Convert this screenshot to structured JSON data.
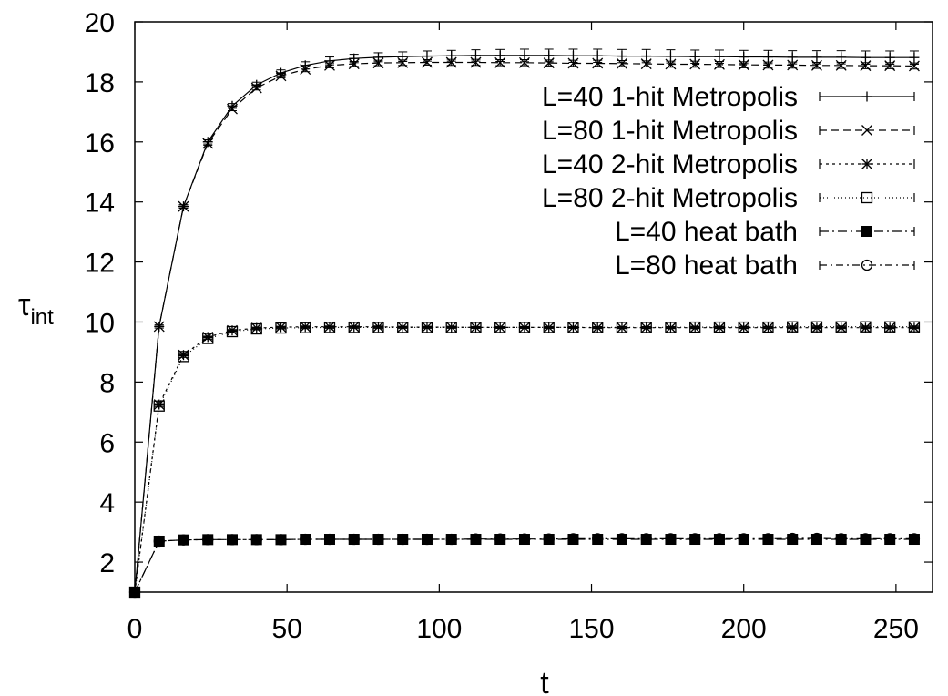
{
  "chart_data": {
    "type": "line",
    "xlabel": "t",
    "ylabel_main": "τ",
    "ylabel_sub": "int",
    "xlim": [
      0,
      262
    ],
    "ylim": [
      1,
      20
    ],
    "xticks": [
      0,
      50,
      100,
      150,
      200,
      250
    ],
    "yticks": [
      2,
      4,
      6,
      8,
      10,
      12,
      14,
      16,
      18,
      20
    ],
    "grid": false,
    "legend_position": "top-right",
    "series": [
      {
        "name": "L=40 1-hit Metropolis",
        "marker": "plus",
        "dash": "solid",
        "errorbars": true,
        "x": [
          0,
          8,
          16,
          24,
          32,
          40,
          48,
          56,
          64,
          72,
          80,
          88,
          96,
          104,
          112,
          120,
          128,
          136,
          144,
          152,
          160,
          168,
          176,
          184,
          192,
          200,
          208,
          216,
          224,
          232,
          240,
          248,
          256
        ],
        "y": [
          1.0,
          9.85,
          13.85,
          16.0,
          17.2,
          17.9,
          18.3,
          18.55,
          18.7,
          18.78,
          18.82,
          18.84,
          18.86,
          18.87,
          18.88,
          18.88,
          18.88,
          18.88,
          18.87,
          18.87,
          18.86,
          18.86,
          18.85,
          18.84,
          18.84,
          18.83,
          18.83,
          18.82,
          18.82,
          18.82,
          18.81,
          18.81,
          18.81
        ],
        "err": [
          0.0,
          0.05,
          0.06,
          0.07,
          0.08,
          0.09,
          0.1,
          0.12,
          0.13,
          0.14,
          0.15,
          0.16,
          0.17,
          0.18,
          0.19,
          0.2,
          0.21,
          0.21,
          0.22,
          0.22,
          0.22,
          0.22,
          0.22,
          0.22,
          0.22,
          0.22,
          0.22,
          0.22,
          0.22,
          0.22,
          0.22,
          0.22,
          0.22
        ]
      },
      {
        "name": "L=80 1-hit Metropolis",
        "marker": "cross",
        "dash": "8,5",
        "errorbars": true,
        "x": [
          0,
          8,
          16,
          24,
          32,
          40,
          48,
          56,
          64,
          72,
          80,
          88,
          96,
          104,
          112,
          120,
          128,
          136,
          144,
          152,
          160,
          168,
          176,
          184,
          192,
          200,
          208,
          216,
          224,
          232,
          240,
          248,
          256
        ],
        "y": [
          1.0,
          9.85,
          13.85,
          15.95,
          17.1,
          17.8,
          18.2,
          18.42,
          18.55,
          18.6,
          18.63,
          18.64,
          18.65,
          18.65,
          18.65,
          18.64,
          18.64,
          18.63,
          18.62,
          18.62,
          18.61,
          18.6,
          18.59,
          18.59,
          18.58,
          18.57,
          18.56,
          18.56,
          18.55,
          18.55,
          18.54,
          18.54,
          18.53
        ],
        "err": [
          0.0,
          0.05,
          0.05,
          0.06,
          0.06,
          0.07,
          0.07,
          0.08,
          0.08,
          0.08,
          0.09,
          0.09,
          0.09,
          0.1,
          0.1,
          0.1,
          0.1,
          0.1,
          0.1,
          0.1,
          0.1,
          0.1,
          0.1,
          0.1,
          0.1,
          0.1,
          0.1,
          0.1,
          0.1,
          0.1,
          0.1,
          0.1,
          0.1
        ]
      },
      {
        "name": "L=40 2-hit Metropolis",
        "marker": "star",
        "dash": "3,4",
        "errorbars": true,
        "x": [
          0,
          8,
          16,
          24,
          32,
          40,
          48,
          56,
          64,
          72,
          80,
          88,
          96,
          104,
          112,
          120,
          128,
          136,
          144,
          152,
          160,
          168,
          176,
          184,
          192,
          200,
          208,
          216,
          224,
          232,
          240,
          248,
          256
        ],
        "y": [
          1.0,
          7.25,
          8.9,
          9.5,
          9.72,
          9.8,
          9.83,
          9.84,
          9.84,
          9.84,
          9.84,
          9.83,
          9.83,
          9.83,
          9.82,
          9.82,
          9.82,
          9.82,
          9.82,
          9.81,
          9.81,
          9.81,
          9.81,
          9.81,
          9.81,
          9.81,
          9.81,
          9.81,
          9.81,
          9.81,
          9.81,
          9.81,
          9.81
        ],
        "err": [
          0.0,
          0.03,
          0.03,
          0.03,
          0.03,
          0.03,
          0.03,
          0.03,
          0.03,
          0.03,
          0.03,
          0.03,
          0.03,
          0.03,
          0.03,
          0.03,
          0.03,
          0.03,
          0.03,
          0.03,
          0.03,
          0.03,
          0.03,
          0.03,
          0.03,
          0.03,
          0.03,
          0.03,
          0.03,
          0.03,
          0.03,
          0.03,
          0.03
        ]
      },
      {
        "name": "L=80 2-hit Metropolis",
        "marker": "square-open",
        "dash": "1,3",
        "errorbars": true,
        "x": [
          0,
          8,
          16,
          24,
          32,
          40,
          48,
          56,
          64,
          72,
          80,
          88,
          96,
          104,
          112,
          120,
          128,
          136,
          144,
          152,
          160,
          168,
          176,
          184,
          192,
          200,
          208,
          216,
          224,
          232,
          240,
          248,
          256
        ],
        "y": [
          1.0,
          7.2,
          8.85,
          9.45,
          9.68,
          9.77,
          9.8,
          9.81,
          9.82,
          9.82,
          9.82,
          9.82,
          9.82,
          9.82,
          9.82,
          9.82,
          9.82,
          9.82,
          9.82,
          9.82,
          9.82,
          9.82,
          9.82,
          9.83,
          9.83,
          9.83,
          9.83,
          9.84,
          9.84,
          9.84,
          9.84,
          9.84,
          9.84
        ],
        "err": [
          0.0,
          0.03,
          0.03,
          0.03,
          0.03,
          0.03,
          0.03,
          0.03,
          0.03,
          0.03,
          0.03,
          0.03,
          0.03,
          0.03,
          0.03,
          0.03,
          0.03,
          0.03,
          0.03,
          0.03,
          0.03,
          0.03,
          0.03,
          0.03,
          0.03,
          0.03,
          0.03,
          0.03,
          0.03,
          0.03,
          0.03,
          0.03,
          0.03
        ]
      },
      {
        "name": "L=40 heat bath",
        "marker": "square-filled",
        "dash": "10,4,2,4",
        "errorbars": true,
        "x": [
          0,
          8,
          16,
          24,
          32,
          40,
          48,
          56,
          64,
          72,
          80,
          88,
          96,
          104,
          112,
          120,
          128,
          136,
          144,
          152,
          160,
          168,
          176,
          184,
          192,
          200,
          208,
          216,
          224,
          232,
          240,
          248,
          256
        ],
        "y": [
          1.0,
          2.7,
          2.74,
          2.75,
          2.75,
          2.75,
          2.75,
          2.76,
          2.76,
          2.76,
          2.76,
          2.76,
          2.76,
          2.76,
          2.76,
          2.76,
          2.76,
          2.76,
          2.76,
          2.76,
          2.76,
          2.76,
          2.76,
          2.76,
          2.76,
          2.76,
          2.76,
          2.76,
          2.76,
          2.76,
          2.76,
          2.76,
          2.76
        ],
        "err": [
          0.0,
          0.02,
          0.02,
          0.02,
          0.02,
          0.02,
          0.02,
          0.02,
          0.02,
          0.02,
          0.02,
          0.02,
          0.02,
          0.02,
          0.02,
          0.02,
          0.02,
          0.02,
          0.02,
          0.02,
          0.02,
          0.02,
          0.02,
          0.02,
          0.02,
          0.02,
          0.02,
          0.02,
          0.02,
          0.02,
          0.02,
          0.02,
          0.02
        ]
      },
      {
        "name": "L=80 heat bath",
        "marker": "circle-open",
        "dash": "8,4,2,4",
        "errorbars": true,
        "x": [
          0,
          8,
          16,
          24,
          32,
          40,
          48,
          56,
          64,
          72,
          80,
          88,
          96,
          104,
          112,
          120,
          128,
          136,
          144,
          152,
          160,
          168,
          176,
          184,
          192,
          200,
          208,
          216,
          224,
          232,
          240,
          248,
          256
        ],
        "y": [
          1.0,
          2.7,
          2.74,
          2.75,
          2.75,
          2.75,
          2.75,
          2.76,
          2.76,
          2.76,
          2.76,
          2.76,
          2.76,
          2.76,
          2.77,
          2.77,
          2.77,
          2.77,
          2.78,
          2.78,
          2.78,
          2.78,
          2.78,
          2.78,
          2.78,
          2.78,
          2.78,
          2.79,
          2.79,
          2.78,
          2.78,
          2.78,
          2.78
        ],
        "err": [
          0.0,
          0.02,
          0.02,
          0.02,
          0.02,
          0.02,
          0.02,
          0.02,
          0.02,
          0.02,
          0.02,
          0.02,
          0.02,
          0.02,
          0.02,
          0.02,
          0.02,
          0.02,
          0.02,
          0.02,
          0.02,
          0.02,
          0.02,
          0.02,
          0.02,
          0.02,
          0.02,
          0.02,
          0.02,
          0.02,
          0.02,
          0.02,
          0.02
        ]
      }
    ]
  }
}
